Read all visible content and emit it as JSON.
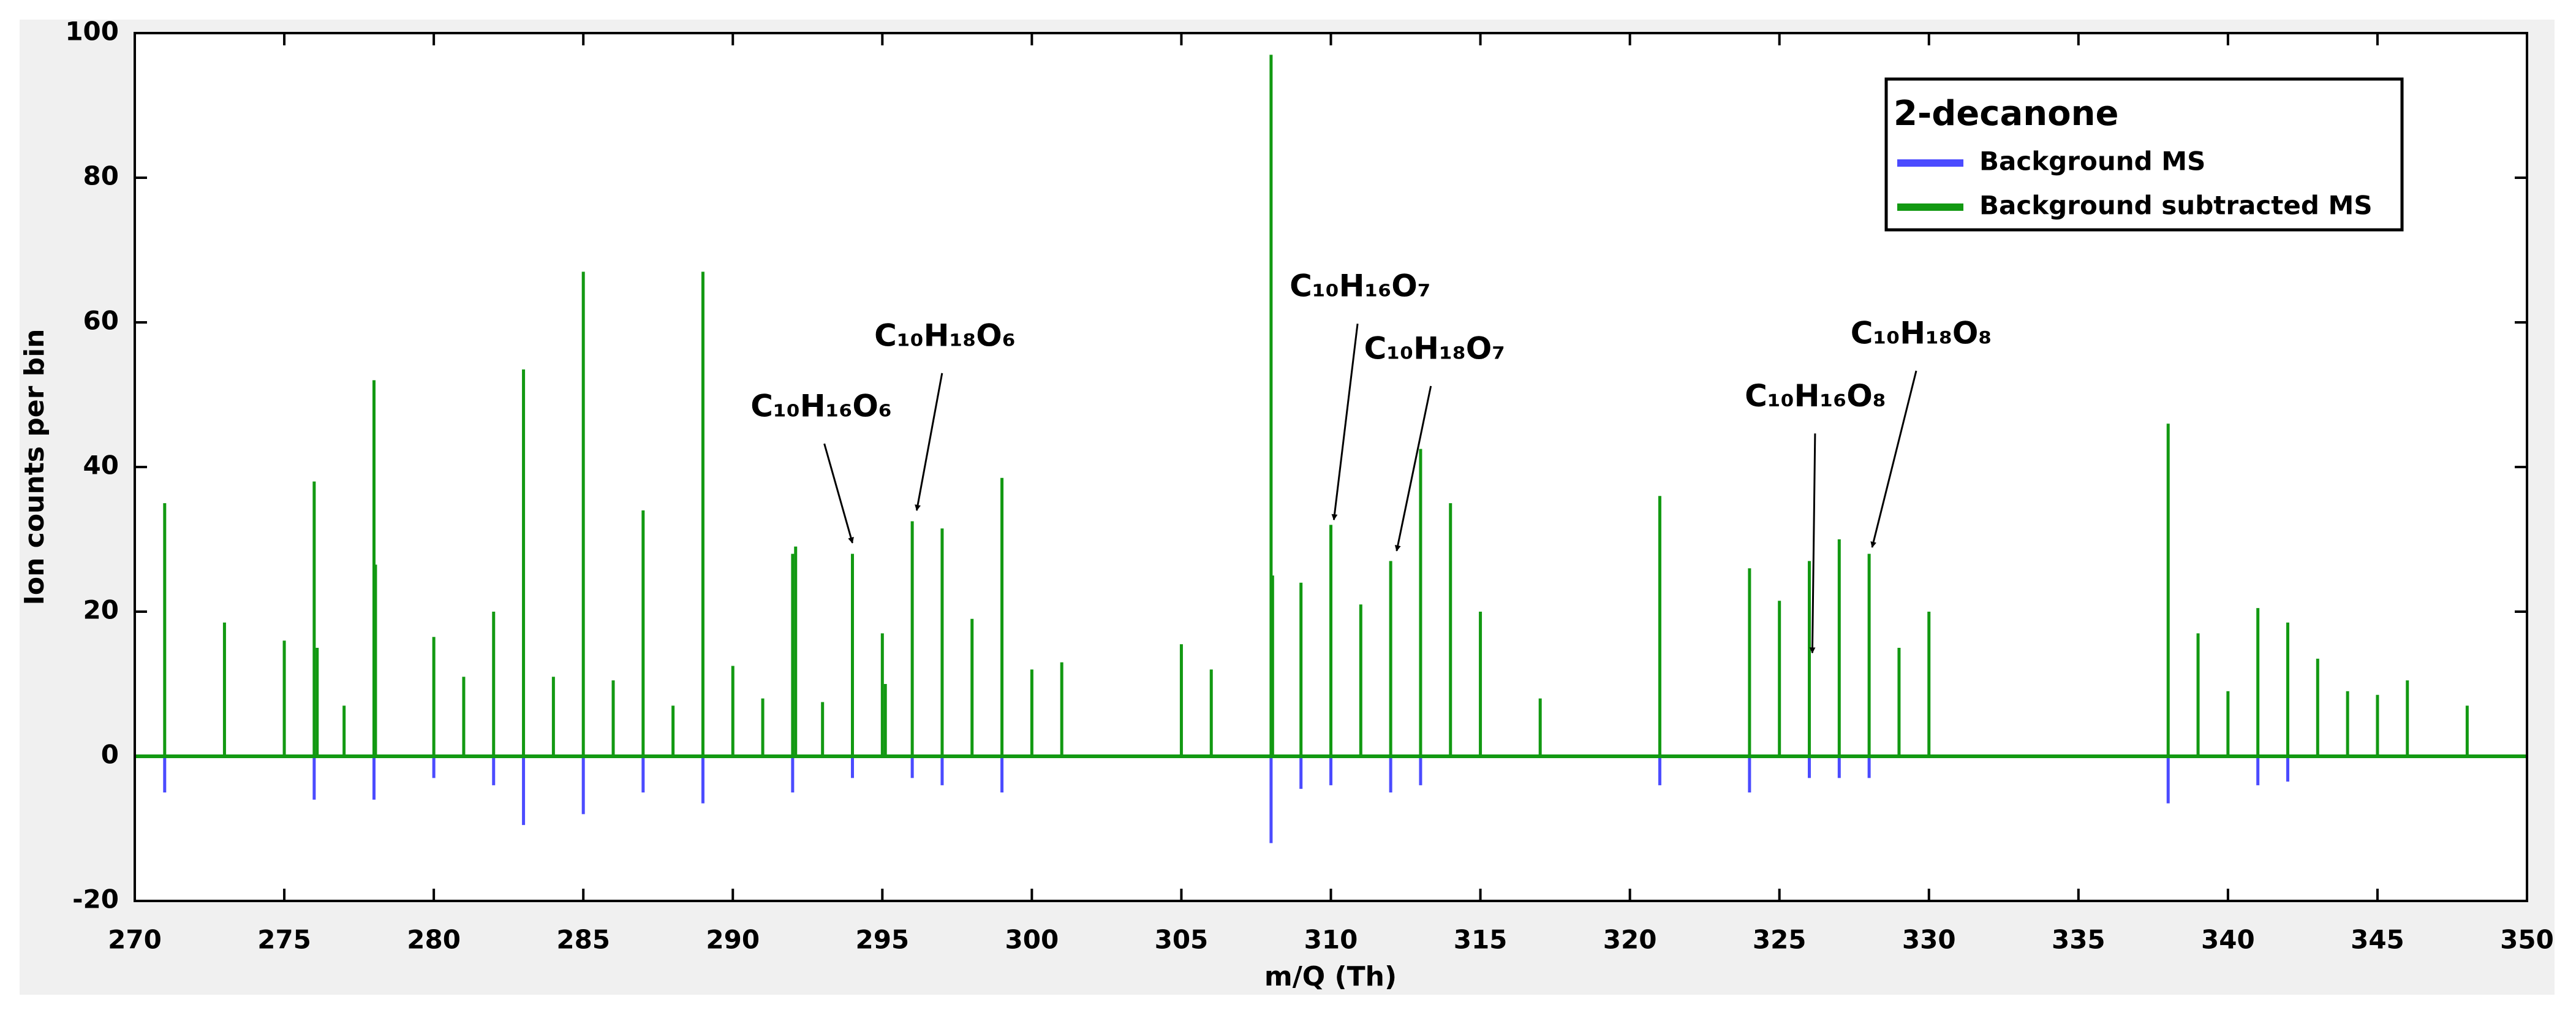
{
  "chart_data": {
    "type": "stem",
    "xlabel": "m/Q (Th)",
    "ylabel": "Ion counts per bin",
    "legend_title": "2-decanone",
    "legend": "upper right",
    "xlim": [
      270,
      350
    ],
    "ylim": [
      -20,
      100
    ],
    "xticks": [
      270,
      275,
      280,
      285,
      290,
      295,
      300,
      305,
      310,
      315,
      320,
      325,
      330,
      335,
      340,
      345,
      350
    ],
    "yticks": [
      -20,
      0,
      20,
      40,
      60,
      80,
      100
    ],
    "series": [
      {
        "name": "Background MS",
        "color": "#4b4bff",
        "x": [
          271,
          276,
          278,
          280,
          282,
          283,
          285,
          287,
          289,
          292,
          294,
          296,
          297,
          299,
          308,
          309,
          310,
          312,
          313,
          321,
          324,
          326,
          327,
          328,
          338,
          341,
          342
        ],
        "values": [
          -5,
          -6,
          -6,
          -3,
          -4,
          -9.5,
          -8,
          -5,
          -6.5,
          -5,
          -3,
          -3,
          -4,
          -5,
          -12,
          -4.5,
          -4,
          -5,
          -4,
          -4,
          -5,
          -3,
          -3,
          -3,
          -6.5,
          -4,
          -3.5
        ]
      },
      {
        "name": "Background subtracted MS",
        "color": "#129912",
        "x": [
          271,
          273,
          275,
          276,
          276.1,
          277,
          278,
          278.05,
          280,
          281,
          282,
          283,
          284,
          285,
          286,
          287,
          288,
          289,
          290,
          291,
          292,
          292.1,
          293,
          294,
          295,
          295.1,
          296,
          297,
          298,
          299,
          300,
          301,
          305,
          306,
          308,
          308.05,
          309,
          310,
          311,
          312,
          313,
          314,
          315,
          317,
          321,
          324,
          325,
          326,
          327,
          328,
          329,
          330,
          338,
          339,
          340,
          341,
          342,
          343,
          344,
          345,
          346,
          348
        ],
        "values": [
          35,
          18.5,
          16,
          38,
          15,
          7,
          52,
          26.5,
          16.5,
          11,
          20,
          53.5,
          11,
          67,
          10.5,
          34,
          7,
          67,
          12.5,
          8,
          28,
          29,
          7.5,
          28,
          17,
          10,
          32.5,
          31.5,
          19,
          38.5,
          12,
          13,
          15.5,
          12,
          97,
          25,
          24,
          32,
          21,
          27,
          42.5,
          35,
          20,
          8,
          36,
          26,
          21.5,
          27,
          30,
          28,
          15,
          20,
          46,
          17,
          9,
          20.5,
          18.5,
          13.5,
          9,
          8.5,
          10.5,
          7
        ]
      }
    ],
    "annotations": [
      {
        "text": "C₁₀H₁₆O₆",
        "x": 294.0,
        "y": 29.5
      },
      {
        "text": "C₁₀H₁₈O₆",
        "x": 296.15,
        "y": 34
      },
      {
        "text": "C₁₀H₁₆O₇",
        "x": 310.1,
        "y": 32.7
      },
      {
        "text": "C₁₀H₁₈O₇",
        "x": 312.2,
        "y": 28.4
      },
      {
        "text": "C₁₀H₁₆O₈",
        "x": 326.1,
        "y": 14.3
      },
      {
        "text": "C₁₀H₁₈O₈",
        "x": 328.1,
        "y": 28.9
      }
    ]
  }
}
